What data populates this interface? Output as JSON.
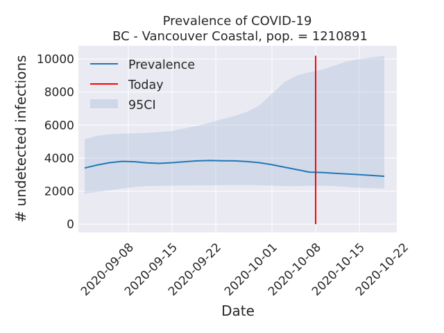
{
  "chart_data": {
    "type": "line",
    "title_line1": "Prevalence of COVID-19",
    "title_line2": "BC - Vancouver Coastal, pop. = 1210891",
    "xlabel": "Date",
    "ylabel": "# undetected infections",
    "x_ticks": [
      "2020-09-08",
      "2020-09-15",
      "2020-09-22",
      "2020-10-01",
      "2020-10-08",
      "2020-10-15",
      "2020-10-22"
    ],
    "y_ticks": [
      0,
      2000,
      4000,
      6000,
      8000,
      10000
    ],
    "ylim": [
      -500,
      10800
    ],
    "xlim": [
      "2020-08-31",
      "2020-10-21"
    ],
    "grid": true,
    "legend_placement": "top-left",
    "today": "2020-10-08",
    "series": [
      {
        "name": "Prevalence",
        "color": "#1f77b4",
        "x": [
          "2020-09-01",
          "2020-09-03",
          "2020-09-05",
          "2020-09-07",
          "2020-09-09",
          "2020-09-11",
          "2020-09-13",
          "2020-09-15",
          "2020-09-17",
          "2020-09-19",
          "2020-09-21",
          "2020-09-23",
          "2020-09-25",
          "2020-09-27",
          "2020-09-29",
          "2020-10-01",
          "2020-10-03",
          "2020-10-05",
          "2020-10-07",
          "2020-10-09",
          "2020-10-11",
          "2020-10-13",
          "2020-10-15",
          "2020-10-17",
          "2020-10-19"
        ],
        "values": [
          3400,
          3580,
          3720,
          3800,
          3780,
          3710,
          3680,
          3720,
          3780,
          3830,
          3850,
          3840,
          3830,
          3790,
          3720,
          3600,
          3450,
          3300,
          3150,
          3130,
          3080,
          3040,
          3000,
          2950,
          2900
        ]
      },
      {
        "name": "Today",
        "color": "#ff0000",
        "x": [
          "2020-10-08",
          "2020-10-08"
        ],
        "values": [
          0,
          10200
        ]
      }
    ],
    "band": {
      "name": "95CI",
      "color": "#b0c4de",
      "x": [
        "2020-09-01",
        "2020-09-03",
        "2020-09-05",
        "2020-09-07",
        "2020-09-09",
        "2020-09-11",
        "2020-09-13",
        "2020-09-15",
        "2020-09-17",
        "2020-09-19",
        "2020-09-21",
        "2020-09-23",
        "2020-09-25",
        "2020-09-27",
        "2020-09-29",
        "2020-10-01",
        "2020-10-03",
        "2020-10-05",
        "2020-10-07",
        "2020-10-09",
        "2020-10-11",
        "2020-10-13",
        "2020-10-15",
        "2020-10-17",
        "2020-10-19"
      ],
      "lower": [
        1850,
        1950,
        2050,
        2150,
        2250,
        2300,
        2320,
        2330,
        2340,
        2350,
        2350,
        2360,
        2370,
        2370,
        2360,
        2330,
        2300,
        2300,
        2320,
        2330,
        2300,
        2250,
        2200,
        2180,
        2150
      ],
      "upper": [
        5150,
        5350,
        5450,
        5480,
        5500,
        5530,
        5580,
        5650,
        5800,
        5950,
        6150,
        6350,
        6550,
        6800,
        7200,
        7900,
        8600,
        9000,
        9200,
        9350,
        9600,
        9850,
        10000,
        10100,
        10200
      ]
    }
  }
}
